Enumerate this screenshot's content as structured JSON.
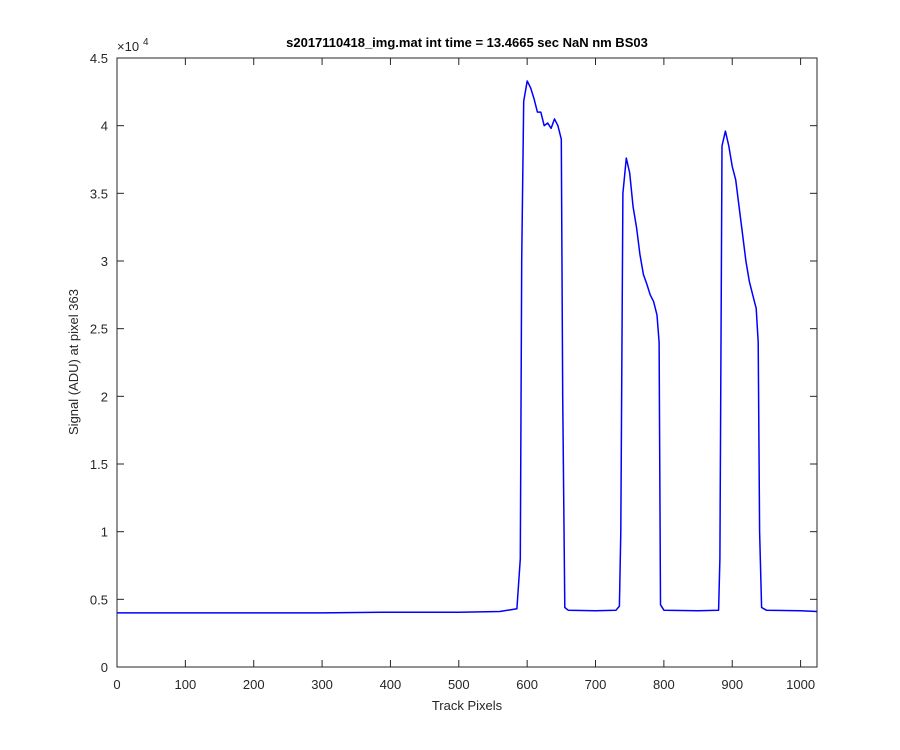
{
  "chart_data": {
    "type": "line",
    "title": "s2017110418_img.mat int time = 13.4665 sec  NaN nm BS03",
    "xlabel": "Track Pixels",
    "ylabel": "Signal (ADU) at pixel 363",
    "xlim": [
      0,
      1024
    ],
    "ylim": [
      0,
      45000
    ],
    "x_ticks": [
      0,
      100,
      200,
      300,
      400,
      500,
      600,
      700,
      800,
      900,
      1000
    ],
    "x_tick_labels": [
      "0",
      "100",
      "200",
      "300",
      "400",
      "500",
      "600",
      "700",
      "800",
      "900",
      "1000"
    ],
    "y_ticks": [
      0,
      5000,
      10000,
      15000,
      20000,
      25000,
      30000,
      35000,
      40000,
      45000
    ],
    "y_tick_labels": [
      "0",
      "0.5",
      "1",
      "1.5",
      "2",
      "2.5",
      "3",
      "3.5",
      "4",
      "4.5"
    ],
    "y_exponent_label": "×10",
    "y_exponent_power": "4",
    "grid": false,
    "box": true,
    "series": [
      {
        "color": "#0000ff",
        "x": [
          0,
          100,
          200,
          300,
          400,
          500,
          560,
          585,
          590,
          592,
          595,
          600,
          605,
          610,
          615,
          620,
          625,
          630,
          635,
          640,
          645,
          650,
          652,
          655,
          660,
          700,
          730,
          735,
          737,
          740,
          745,
          750,
          755,
          760,
          765,
          770,
          775,
          780,
          785,
          790,
          793,
          795,
          800,
          850,
          880,
          882,
          885,
          890,
          895,
          900,
          905,
          910,
          915,
          920,
          925,
          930,
          935,
          938,
          940,
          943,
          950,
          1000,
          1024
        ],
        "y": [
          4000,
          4000,
          4000,
          4000,
          4050,
          4050,
          4100,
          4300,
          8000,
          30000,
          41800,
          43300,
          42800,
          42000,
          41000,
          41000,
          40000,
          40200,
          39800,
          40500,
          40000,
          39000,
          20000,
          4400,
          4200,
          4150,
          4200,
          4500,
          10000,
          35000,
          37600,
          36500,
          34000,
          32500,
          30500,
          29000,
          28300,
          27500,
          27000,
          26000,
          24000,
          4600,
          4200,
          4150,
          4200,
          8000,
          38500,
          39600,
          38500,
          37000,
          36000,
          34000,
          32000,
          30000,
          28500,
          27500,
          26500,
          24000,
          10000,
          4400,
          4200,
          4150,
          4100
        ]
      }
    ]
  }
}
